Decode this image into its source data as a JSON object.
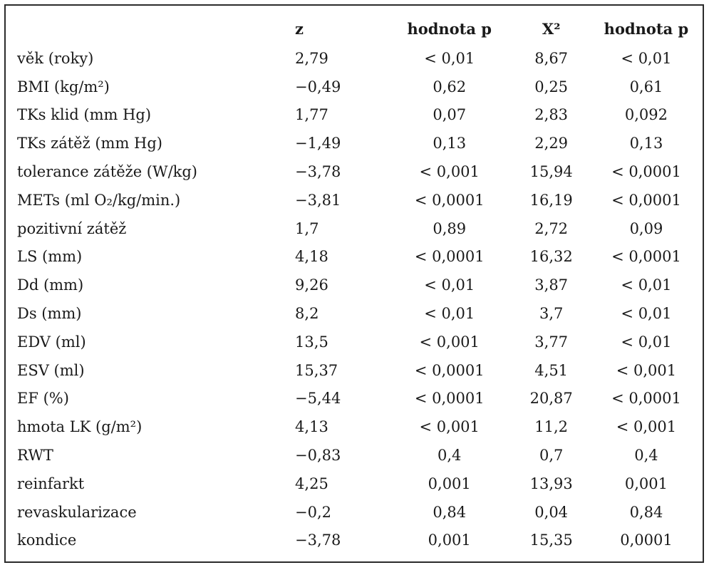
{
  "headers": [
    "",
    "z",
    "hodnota p",
    "X²",
    "hodnota p"
  ],
  "rows": [
    [
      "věk (roky)",
      "2,79",
      "< 0,01",
      "8,67",
      "< 0,01"
    ],
    [
      "BMI (kg/m²)",
      "−0,49",
      "0,62",
      "0,25",
      "0,61"
    ],
    [
      "TKs klid (mm Hg)",
      "1,77",
      "0,07",
      "2,83",
      "0,092"
    ],
    [
      "TKs zátěž (mm Hg)",
      "−1,49",
      "0,13",
      "2,29",
      "0,13"
    ],
    [
      "tolerance zátěže (W/kg)",
      "−3,78",
      "< 0,001",
      "15,94",
      "< 0,0001"
    ],
    [
      "METs (ml O₂/kg/min.)",
      "−3,81",
      "< 0,0001",
      "16,19",
      "< 0,0001"
    ],
    [
      "pozitivní zátěž",
      "1,7",
      "0,89",
      "2,72",
      "0,09"
    ],
    [
      "LS (mm)",
      "4,18",
      "< 0,0001",
      "16,32",
      "< 0,0001"
    ],
    [
      "Dd (mm)",
      "9,26",
      "< 0,01",
      "3,87",
      "< 0,01"
    ],
    [
      "Ds (mm)",
      "8,2",
      "< 0,01",
      "3,7",
      "< 0,01"
    ],
    [
      "EDV (ml)",
      "13,5",
      "< 0,001",
      "3,77",
      "< 0,01"
    ],
    [
      "ESV (ml)",
      "15,37",
      "< 0,0001",
      "4,51",
      "< 0,001"
    ],
    [
      "EF (%)",
      "−5,44",
      "< 0,0001",
      "20,87",
      "< 0,0001"
    ],
    [
      "hmota LK (g/m²)",
      "4,13",
      "< 0,001",
      "11,2",
      "< 0,001"
    ],
    [
      "RWT",
      "−0,83",
      "0,4",
      "0,7",
      "0,4"
    ],
    [
      "reinfarkt",
      "4,25",
      "0,001",
      "13,93",
      "0,001"
    ],
    [
      "revaskularizace",
      "−0,2",
      "0,84",
      "0,04",
      "0,84"
    ],
    [
      "kondice",
      "−3,78",
      "0,001",
      "15,35",
      "0,0001"
    ]
  ]
}
